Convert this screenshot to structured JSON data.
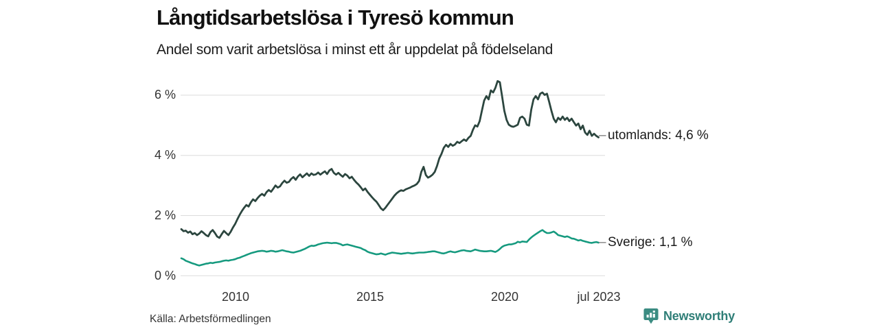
{
  "header": {
    "title": "Långtidsarbetslösa i Tyresö kommun",
    "subtitle": "Andel som varit arbetslösa i minst ett år uppdelat på födelseland"
  },
  "source": {
    "label": "Källa: Arbetsförmedlingen"
  },
  "branding": {
    "name": "Newsworthy",
    "icon": "newsworthy-chart-pin-icon",
    "icon_color": "#3b8c82",
    "text_color": "#2f7e77"
  },
  "chart_data": {
    "type": "line",
    "title": "Långtidsarbetslösa i Tyresö kommun",
    "subtitle": "Andel som varit arbetslösa i minst ett år uppdelat på födelseland",
    "grid": true,
    "grid_color": "#dcdcdc",
    "legend_position": "right-end-of-line",
    "tick_dash": "–",
    "x_axis": {
      "unit": "decimal_year",
      "range": [
        2008.0,
        2023.5
      ],
      "ticks": [
        "2010",
        "2015",
        "2020",
        "jul 2023"
      ],
      "tick_positions": [
        2010,
        2015,
        2020,
        2023.45
      ]
    },
    "y_axis": {
      "unit": "percent",
      "range": [
        0,
        6.6
      ],
      "ticks": [
        "0 %",
        "2 %",
        "4 %",
        "6 %"
      ],
      "tick_values": [
        0,
        2,
        4,
        6
      ]
    },
    "series": [
      {
        "name": "utomlands",
        "label": "utomlands: 4,6 %",
        "last_value": "4,6 %",
        "color": "#2c463f",
        "x_start": 2008.0,
        "x_step_months": 1,
        "values": [
          1.55,
          1.48,
          1.5,
          1.43,
          1.47,
          1.38,
          1.42,
          1.35,
          1.4,
          1.48,
          1.42,
          1.35,
          1.31,
          1.45,
          1.52,
          1.42,
          1.3,
          1.26,
          1.38,
          1.49,
          1.42,
          1.35,
          1.46,
          1.6,
          1.72,
          1.88,
          2.02,
          2.15,
          2.26,
          2.35,
          2.3,
          2.44,
          2.54,
          2.48,
          2.58,
          2.66,
          2.72,
          2.66,
          2.78,
          2.85,
          2.79,
          2.89,
          3.0,
          2.93,
          2.97,
          3.08,
          3.16,
          3.09,
          3.12,
          3.22,
          3.28,
          3.19,
          3.3,
          3.37,
          3.27,
          3.34,
          3.4,
          3.32,
          3.4,
          3.35,
          3.37,
          3.43,
          3.36,
          3.42,
          3.47,
          3.38,
          3.5,
          3.55,
          3.42,
          3.36,
          3.42,
          3.35,
          3.29,
          3.38,
          3.33,
          3.24,
          3.29,
          3.19,
          3.1,
          3.03,
          2.94,
          2.84,
          2.9,
          2.79,
          2.7,
          2.61,
          2.53,
          2.46,
          2.35,
          2.24,
          2.18,
          2.26,
          2.36,
          2.46,
          2.56,
          2.66,
          2.74,
          2.8,
          2.84,
          2.82,
          2.87,
          2.9,
          2.93,
          2.97,
          3.0,
          3.05,
          3.15,
          3.45,
          3.62,
          3.35,
          3.26,
          3.3,
          3.36,
          3.45,
          3.65,
          3.9,
          4.05,
          4.25,
          4.35,
          4.28,
          4.38,
          4.32,
          4.36,
          4.45,
          4.41,
          4.47,
          4.53,
          4.48,
          4.58,
          4.65,
          4.85,
          5.0,
          4.96,
          5.14,
          5.48,
          5.82,
          5.97,
          5.86,
          6.16,
          6.09,
          6.24,
          6.47,
          6.43,
          5.97,
          5.48,
          5.18,
          5.02,
          4.97,
          4.95,
          4.98,
          5.02,
          5.25,
          5.29,
          5.22,
          5.02,
          4.99,
          5.52,
          5.86,
          5.97,
          5.86,
          6.05,
          6.09,
          6.01,
          6.05,
          5.78,
          5.48,
          5.22,
          5.1,
          5.25,
          5.18,
          5.29,
          5.18,
          5.25,
          5.14,
          5.22,
          5.1,
          4.99,
          5.06,
          4.87,
          4.99,
          4.76,
          4.68,
          4.82,
          4.65,
          4.72,
          4.65,
          4.6
        ]
      },
      {
        "name": "Sverige",
        "label": "Sverige: 1,1 %",
        "last_value": "1,1 %",
        "color": "#169a7f",
        "x_start": 2008.0,
        "x_step_months": 1,
        "values": [
          0.58,
          0.55,
          0.5,
          0.47,
          0.44,
          0.41,
          0.39,
          0.36,
          0.34,
          0.36,
          0.38,
          0.4,
          0.41,
          0.43,
          0.42,
          0.44,
          0.45,
          0.46,
          0.48,
          0.5,
          0.51,
          0.5,
          0.52,
          0.53,
          0.55,
          0.58,
          0.6,
          0.63,
          0.66,
          0.69,
          0.72,
          0.75,
          0.77,
          0.79,
          0.81,
          0.82,
          0.83,
          0.82,
          0.8,
          0.81,
          0.83,
          0.82,
          0.8,
          0.81,
          0.83,
          0.85,
          0.83,
          0.81,
          0.8,
          0.78,
          0.77,
          0.79,
          0.81,
          0.83,
          0.86,
          0.89,
          0.93,
          0.97,
          1.0,
          0.99,
          1.01,
          1.04,
          1.06,
          1.08,
          1.09,
          1.1,
          1.09,
          1.08,
          1.09,
          1.09,
          1.07,
          1.05,
          1.01,
          1.03,
          1.04,
          1.02,
          1.0,
          0.98,
          0.96,
          0.94,
          0.92,
          0.88,
          0.85,
          0.8,
          0.77,
          0.75,
          0.73,
          0.71,
          0.72,
          0.74,
          0.72,
          0.7,
          0.73,
          0.75,
          0.77,
          0.76,
          0.75,
          0.74,
          0.73,
          0.74,
          0.75,
          0.76,
          0.75,
          0.74,
          0.75,
          0.76,
          0.77,
          0.77,
          0.77,
          0.78,
          0.79,
          0.8,
          0.81,
          0.81,
          0.79,
          0.77,
          0.75,
          0.74,
          0.76,
          0.79,
          0.81,
          0.79,
          0.78,
          0.8,
          0.82,
          0.84,
          0.85,
          0.83,
          0.82,
          0.81,
          0.84,
          0.87,
          0.85,
          0.83,
          0.82,
          0.81,
          0.81,
          0.82,
          0.83,
          0.81,
          0.79,
          0.83,
          0.89,
          0.96,
          1.0,
          1.02,
          1.04,
          1.04,
          1.06,
          1.08,
          1.13,
          1.11,
          1.14,
          1.13,
          1.12,
          1.2,
          1.27,
          1.33,
          1.38,
          1.43,
          1.48,
          1.52,
          1.46,
          1.42,
          1.42,
          1.44,
          1.47,
          1.42,
          1.35,
          1.33,
          1.31,
          1.29,
          1.31,
          1.28,
          1.24,
          1.23,
          1.2,
          1.17,
          1.19,
          1.16,
          1.14,
          1.12,
          1.1,
          1.09,
          1.11,
          1.12,
          1.1
        ]
      }
    ]
  }
}
